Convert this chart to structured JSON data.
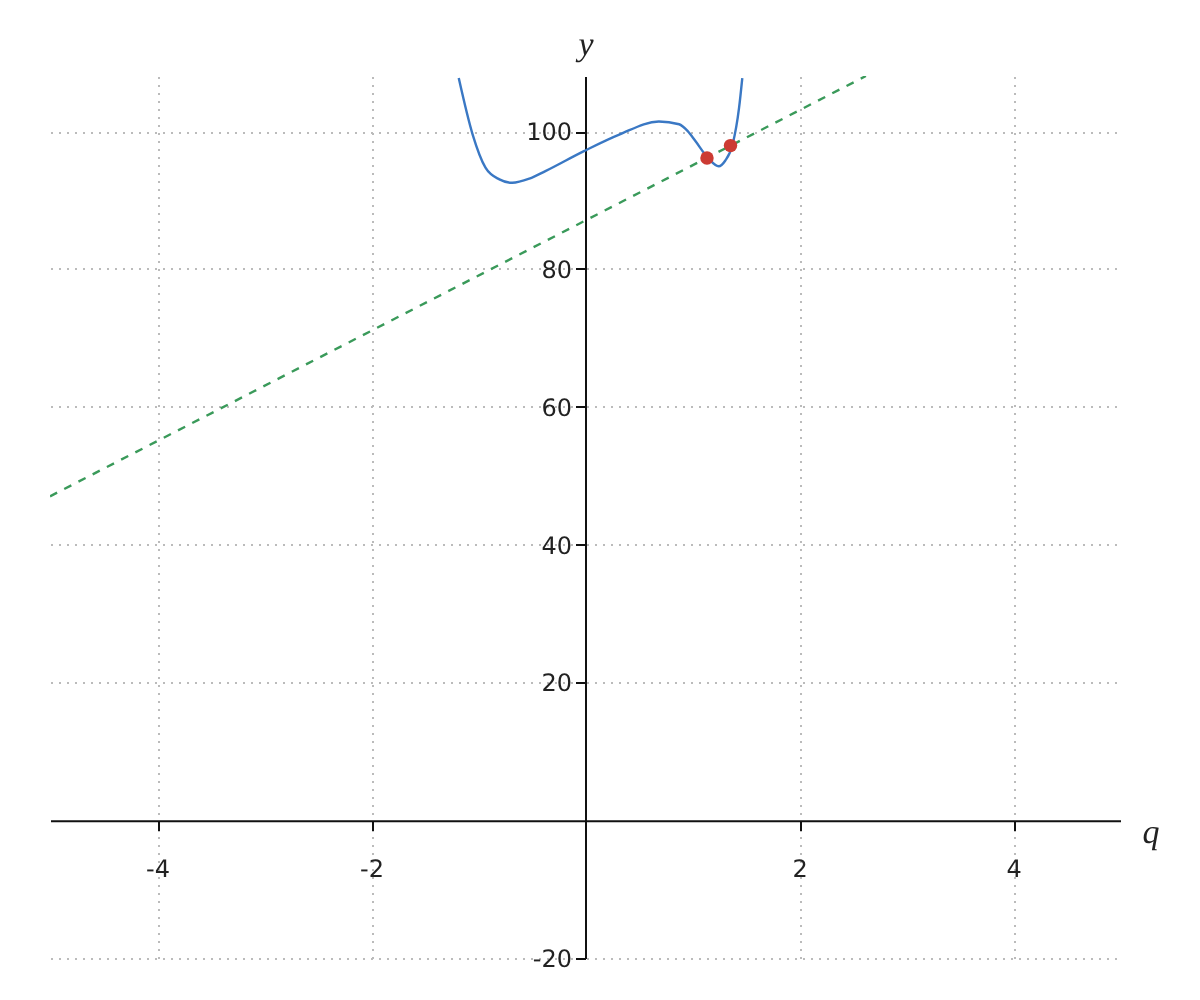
{
  "chart_data": {
    "type": "line",
    "xlabel": "q",
    "ylabel": "y",
    "xlim": [
      -5,
      5
    ],
    "ylim": [
      -20,
      108
    ],
    "xticks": [
      -4,
      -2,
      2,
      4
    ],
    "yticks": [
      -20,
      20,
      40,
      60,
      80,
      100
    ],
    "grid": true,
    "series": [
      {
        "color": "#3a78c4",
        "line_style": "solid",
        "marker": "none",
        "x": [
          -1.18,
          -1.05,
          -0.93,
          -0.8,
          -0.68,
          -0.52,
          -0.37,
          -0.01,
          0.32,
          0.69,
          0.88,
          0.96,
          1.03,
          1.15,
          1.25,
          1.31,
          1.38,
          1.44,
          1.47
        ],
        "values": [
          107.7,
          99.5,
          94.7,
          93.0,
          92.5,
          93.1,
          94.2,
          97.1,
          99.5,
          101.4,
          101.0,
          100.0,
          98.6,
          96.1,
          94.9,
          95.7,
          98.1,
          103.4,
          107.7
        ]
      },
      {
        "type": "line",
        "color": "#3a9a5a",
        "line_style": "dashed",
        "marker": "none",
        "x": [
          -5,
          2.625
        ],
        "values": [
          47,
          108
        ]
      },
      {
        "type": "scatter",
        "color": "#cc3b33",
        "marker": "circle",
        "x": [
          1.14,
          1.36
        ],
        "values": [
          96.1,
          97.9
        ]
      }
    ]
  }
}
